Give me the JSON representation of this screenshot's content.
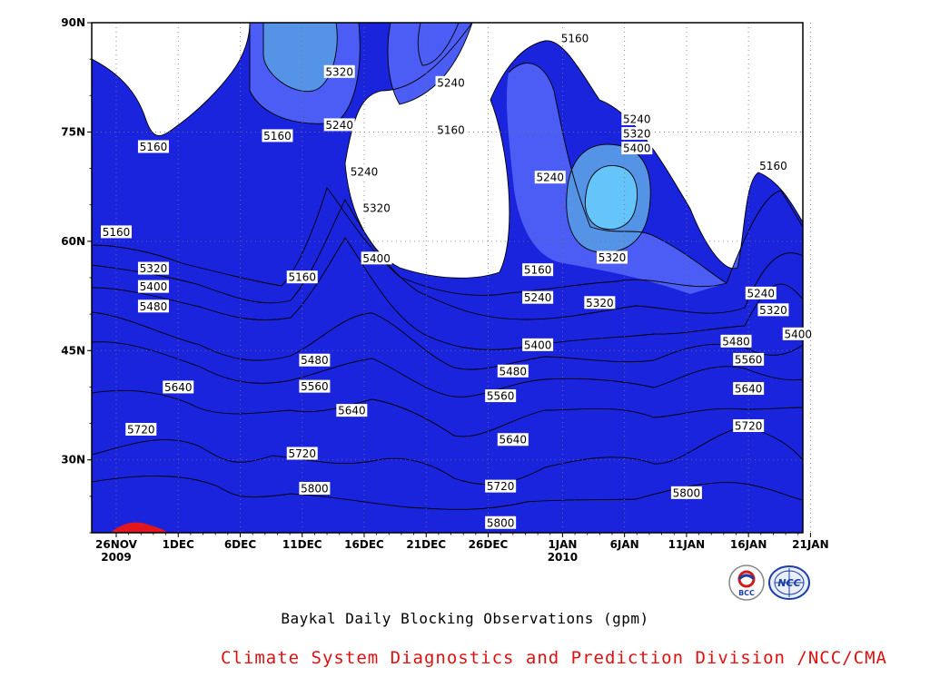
{
  "chart_data": {
    "type": "heatmap",
    "subtype": "filled-contour",
    "title": "Baykal Daily Blocking Observations (gpm)",
    "credit": "Climate System Diagnostics and Prediction Division /NCC/CMA",
    "x_axis": {
      "tick_labels": [
        {
          "label": "26NOV",
          "sub": "2009",
          "day": 0
        },
        {
          "label": "1DEC",
          "day": 5
        },
        {
          "label": "6DEC",
          "day": 10
        },
        {
          "label": "11DEC",
          "day": 15
        },
        {
          "label": "16DEC",
          "day": 20
        },
        {
          "label": "21DEC",
          "day": 25
        },
        {
          "label": "26DEC",
          "day": 30
        },
        {
          "label": "1JAN",
          "sub": "2010",
          "day": 36
        },
        {
          "label": "6JAN",
          "day": 41
        },
        {
          "label": "11JAN",
          "day": 46
        },
        {
          "label": "16JAN",
          "day": 51
        },
        {
          "label": "21JAN",
          "day": 56
        }
      ],
      "range": [
        "2009-11-25",
        "2010-01-21"
      ]
    },
    "y_axis": {
      "tick_labels": [
        "30N",
        "45N",
        "60N",
        "75N",
        "90N"
      ],
      "tick_values": [
        30,
        45,
        60,
        75,
        90
      ],
      "range": [
        20,
        90
      ]
    },
    "grid": true,
    "contour_levels": [
      5160,
      5240,
      5320,
      5400,
      5480,
      5560,
      5640,
      5720,
      5800
    ],
    "fill_colors": [
      "#0e1570",
      "#1a24dd",
      "#4b5df5",
      "#5593e6",
      "#65c4f9",
      "#f8fa7a",
      "#fce3a6",
      "#fbaa6d",
      "#fc7a46",
      "#f5727a",
      "#e4161d"
    ],
    "contour_labels": [
      {
        "text": "5160",
        "day": 3,
        "lat": 73
      },
      {
        "text": "5160",
        "day": 13,
        "lat": 74.5
      },
      {
        "text": "5320",
        "day": 18,
        "lat": 83.3
      },
      {
        "text": "5240",
        "day": 18,
        "lat": 76
      },
      {
        "text": "5240",
        "day": 27,
        "lat": 81.8
      },
      {
        "text": "5160",
        "day": 27,
        "lat": 75.3
      },
      {
        "text": "5240",
        "day": 20,
        "lat": 69.6
      },
      {
        "text": "5320",
        "day": 21,
        "lat": 64.6
      },
      {
        "text": "5400",
        "day": 21,
        "lat": 57.7
      },
      {
        "text": "5160",
        "day": 37,
        "lat": 87.9
      },
      {
        "text": "5240",
        "day": 35,
        "lat": 68.8
      },
      {
        "text": "5240",
        "day": 42,
        "lat": 76.8
      },
      {
        "text": "5320",
        "day": 42,
        "lat": 74.8
      },
      {
        "text": "5400",
        "day": 42,
        "lat": 72.8
      },
      {
        "text": "5320",
        "day": 40,
        "lat": 57.8
      },
      {
        "text": "5160",
        "day": 53,
        "lat": 70.4
      },
      {
        "text": "5160",
        "day": 0,
        "lat": 61.3
      },
      {
        "text": "5320",
        "day": 3,
        "lat": 56.3
      },
      {
        "text": "5400",
        "day": 3,
        "lat": 53.8
      },
      {
        "text": "5480",
        "day": 3,
        "lat": 51.1
      },
      {
        "text": "5160",
        "day": 15,
        "lat": 55.1
      },
      {
        "text": "5160",
        "day": 34,
        "lat": 56.1
      },
      {
        "text": "5240",
        "day": 34,
        "lat": 52.3
      },
      {
        "text": "5320",
        "day": 39,
        "lat": 51.6
      },
      {
        "text": "5400",
        "day": 34,
        "lat": 45.8
      },
      {
        "text": "5480",
        "day": 32,
        "lat": 42.2
      },
      {
        "text": "5240",
        "day": 52,
        "lat": 52.9
      },
      {
        "text": "5320",
        "day": 53,
        "lat": 50.6
      },
      {
        "text": "5400",
        "day": 55,
        "lat": 47.3
      },
      {
        "text": "5480",
        "day": 50,
        "lat": 46.3
      },
      {
        "text": "5560",
        "day": 51,
        "lat": 43.8
      },
      {
        "text": "5640",
        "day": 51,
        "lat": 39.8
      },
      {
        "text": "5720",
        "day": 51,
        "lat": 34.7
      },
      {
        "text": "5480",
        "day": 16,
        "lat": 43.7
      },
      {
        "text": "5560",
        "day": 16,
        "lat": 40.1
      },
      {
        "text": "5640",
        "day": 5,
        "lat": 40.0
      },
      {
        "text": "5640",
        "day": 19,
        "lat": 36.8
      },
      {
        "text": "5720",
        "day": 2,
        "lat": 34.2
      },
      {
        "text": "5720",
        "day": 15,
        "lat": 30.9
      },
      {
        "text": "5800",
        "day": 16,
        "lat": 26.1
      },
      {
        "text": "5560",
        "day": 31,
        "lat": 38.8
      },
      {
        "text": "5640",
        "day": 32,
        "lat": 32.8
      },
      {
        "text": "5720",
        "day": 31,
        "lat": 26.4
      },
      {
        "text": "5800",
        "day": 31,
        "lat": 21.4
      },
      {
        "text": "5800",
        "day": 46,
        "lat": 25.5
      }
    ]
  },
  "logos": [
    {
      "name": "BCC",
      "text": "BCC"
    },
    {
      "name": "NCC",
      "text": "NCC"
    }
  ]
}
